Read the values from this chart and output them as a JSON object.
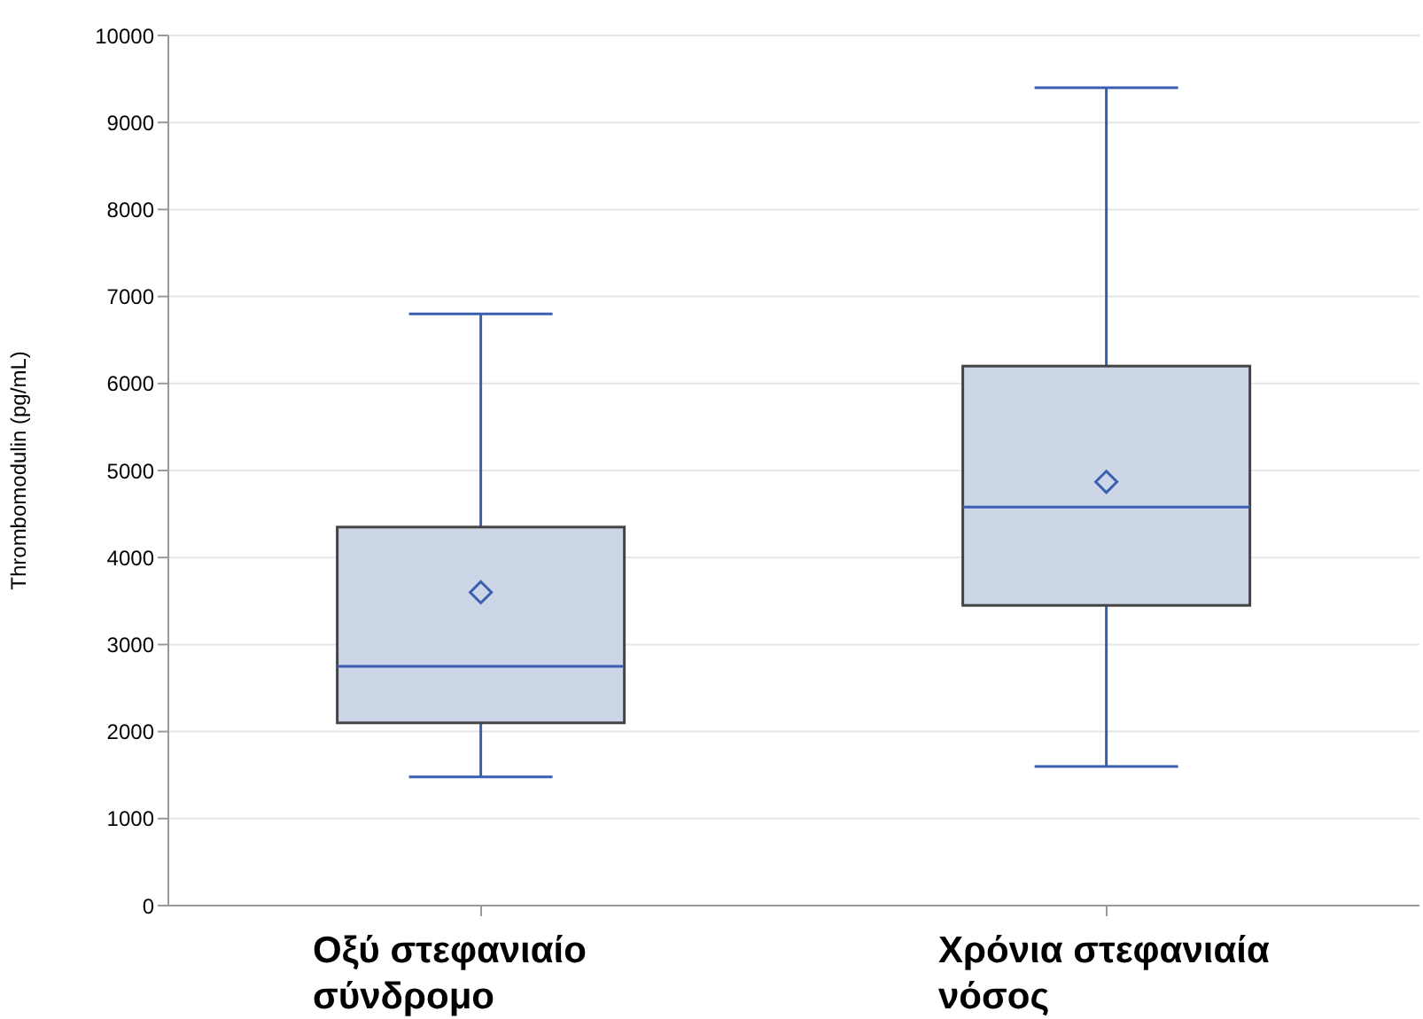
{
  "chart_data": {
    "type": "box",
    "ylabel": "Thrombomodulin (pg/mL)",
    "categories": [
      "Οξύ στεφανιαίο σύνδρομο",
      "Χρόνια στεφανιαία νόσος"
    ],
    "boxes": [
      {
        "low": 1480,
        "q1": 2100,
        "median": 2750,
        "q3": 4350,
        "high": 6800,
        "mean": 3600
      },
      {
        "low": 1600,
        "q1": 3450,
        "median": 4580,
        "q3": 6200,
        "high": 9400,
        "mean": 4870
      }
    ],
    "color": "#ccd6e6",
    "ylim": [
      0,
      10000
    ],
    "yticks": [
      0,
      1000,
      2000,
      3000,
      4000,
      5000,
      6000,
      7000,
      8000,
      9000,
      10000
    ],
    "grid": "y",
    "marker": "diamond"
  }
}
